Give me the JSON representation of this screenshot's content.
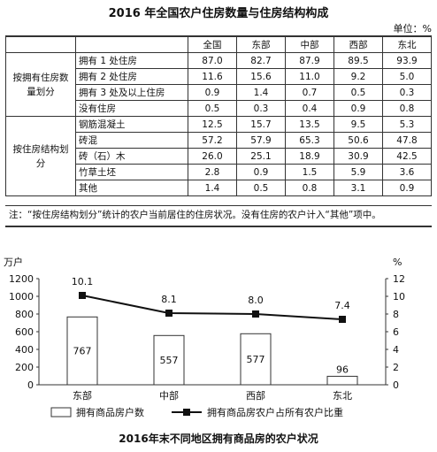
{
  "table_title": "2016 年全国农户住房数量与住房结构构成",
  "unit": "单位：%",
  "columns": [
    "全国",
    "东部",
    "中部",
    "西部",
    "东北"
  ],
  "groups": [
    {
      "label": "按拥有住房数量划分",
      "rows": [
        {
          "label": "拥有 1 处住房",
          "values": [
            "87.0",
            "82.7",
            "87.9",
            "89.5",
            "93.9"
          ]
        },
        {
          "label": "拥有 2 处住房",
          "values": [
            "11.6",
            "15.6",
            "11.0",
            "9.2",
            "5.0"
          ]
        },
        {
          "label": "拥有 3 处及以上住房",
          "values": [
            "0.9",
            "1.4",
            "0.7",
            "0.5",
            "0.3"
          ]
        },
        {
          "label": "没有住房",
          "values": [
            "0.5",
            "0.3",
            "0.4",
            "0.9",
            "0.8"
          ]
        }
      ]
    },
    {
      "label": "按住房结构划分",
      "rows": [
        {
          "label": "钢筋混凝土",
          "values": [
            "12.5",
            "15.7",
            "13.5",
            "9.5",
            "5.3"
          ]
        },
        {
          "label": "砖混",
          "values": [
            "57.2",
            "57.9",
            "65.3",
            "50.6",
            "47.8"
          ]
        },
        {
          "label": "砖（石）木",
          "values": [
            "26.0",
            "25.1",
            "18.9",
            "30.9",
            "42.5"
          ]
        },
        {
          "label": "竹草土坯",
          "values": [
            "2.8",
            "0.9",
            "1.5",
            "5.9",
            "3.6"
          ]
        },
        {
          "label": "其他",
          "values": [
            "1.4",
            "0.5",
            "0.8",
            "3.1",
            "0.9"
          ]
        }
      ]
    }
  ],
  "note": "注：“按住房结构划分”统计的农户当前居住的住房状况。没有住房的农户计入“其他”项中。",
  "chart_data": {
    "type": "bar",
    "title": "2016年末不同地区拥有商品房的农户状况",
    "categories": [
      "东部",
      "中部",
      "西部",
      "东北"
    ],
    "series": [
      {
        "name": "拥有商品房户数",
        "type": "bar",
        "axis": "left",
        "values": [
          767,
          557,
          577,
          96
        ]
      },
      {
        "name": "拥有商品房农户占所有农户比重",
        "type": "line",
        "axis": "right",
        "values": [
          10.1,
          8.1,
          8.0,
          7.4
        ]
      }
    ],
    "ylabel": "万户",
    "ylim": [
      0,
      1200
    ],
    "yticks": [
      0,
      200,
      400,
      600,
      800,
      1000,
      1200
    ],
    "y2label": "%",
    "y2lim": [
      0,
      12
    ],
    "y2ticks": [
      0,
      2,
      4,
      6,
      8,
      10,
      12
    ],
    "legend_position": "bottom",
    "grid": false,
    "colors": {
      "bar_fill": "#ffffff",
      "bar_stroke": "#333333",
      "line": "#111111"
    }
  }
}
